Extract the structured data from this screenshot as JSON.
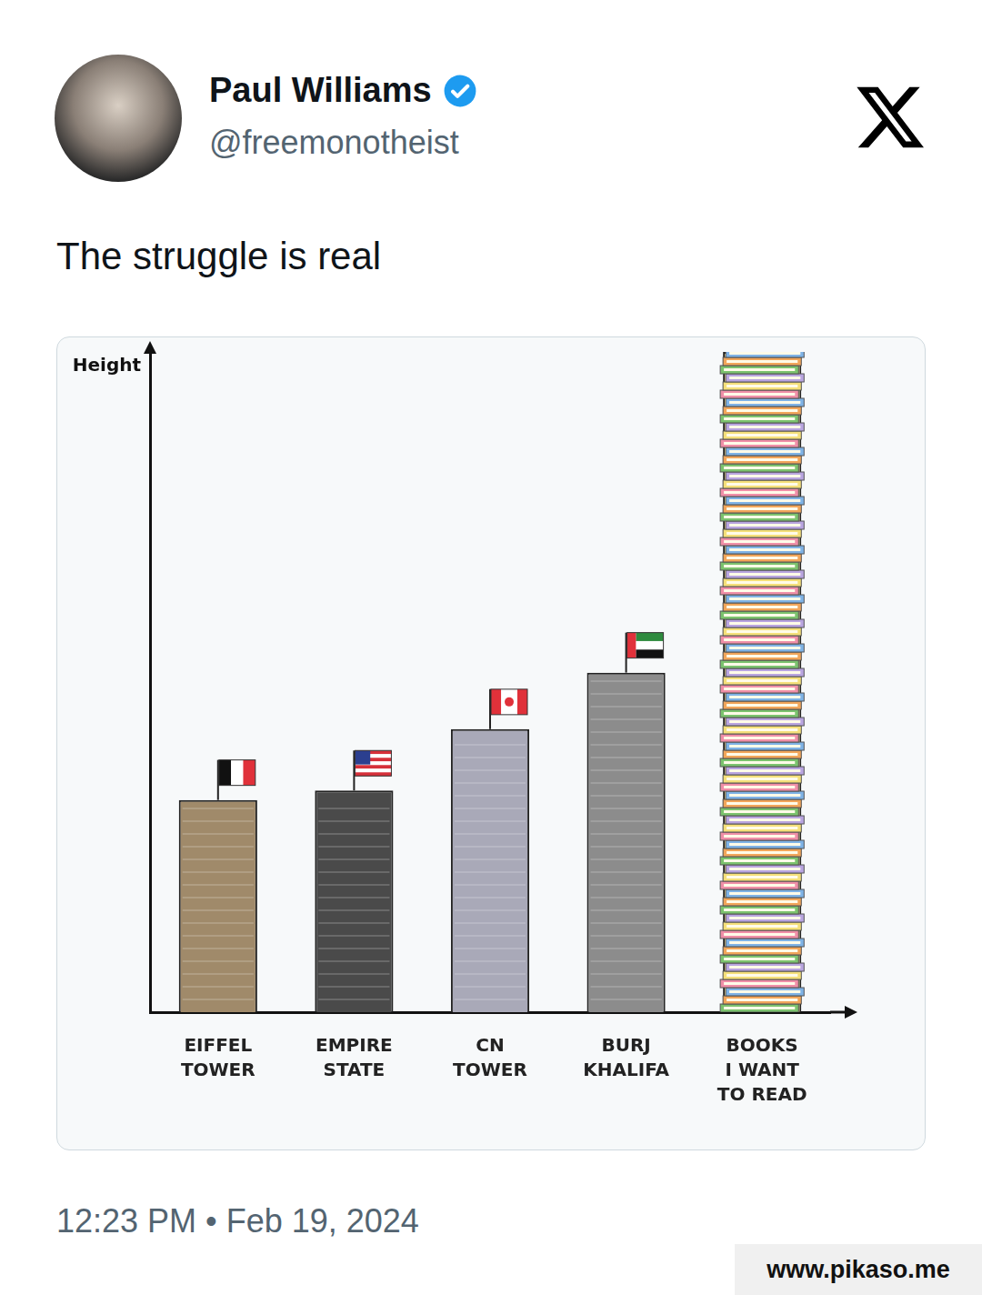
{
  "header": {
    "name": "Paul Williams",
    "handle": "@freemonotheist"
  },
  "text": "The struggle is real",
  "chart_data": {
    "type": "bar",
    "y_label": "Height",
    "categories": [
      [
        "EIFFEL",
        "TOWER"
      ],
      [
        "EMPIRE",
        "STATE"
      ],
      [
        "CN",
        "TOWER"
      ],
      [
        "BURJ",
        "KHALIFA"
      ],
      [
        "BOOKS",
        "I WANT",
        "TO READ"
      ]
    ],
    "values": [
      45,
      47,
      60,
      72,
      140
    ],
    "colors": [
      "#a08a6a",
      "#4a4a4a",
      "#a9a9b8",
      "#8c8c8c",
      "#e9cf7a"
    ],
    "ylim": [
      0,
      140
    ],
    "yticks": [],
    "tick_labels": "x",
    "grid": false,
    "legend": "none"
  },
  "timestamp": "12:23 PM • Feb 19, 2024",
  "watermark": "www.pikaso.me"
}
